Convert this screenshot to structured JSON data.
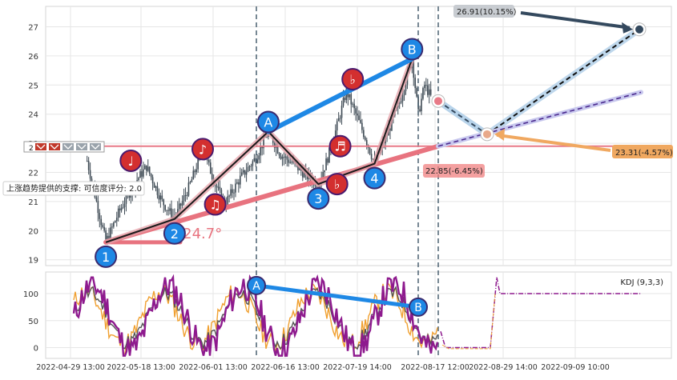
{
  "chart_data": [
    {
      "type": "candlestick",
      "panel": "price",
      "ylim": [
        18.8,
        27.7
      ],
      "yticks": [
        19,
        20,
        21,
        22,
        23,
        24,
        25,
        26,
        27
      ],
      "xticks": [
        "2022-04-29 13:00",
        "2022-05-18 13:00",
        "2022-06-01 13:00",
        "2022-06-16 13:00",
        "2022-07-19 14:00",
        "2022-08-17 12:00",
        "2022-08-29 14:00",
        "2022-09-09 10:00"
      ],
      "grid": true,
      "price_path": [
        {
          "i": 3,
          "v": 22.4
        },
        {
          "i": 6,
          "v": 21.0
        },
        {
          "i": 9,
          "v": 19.6
        },
        {
          "i": 13,
          "v": 20.6
        },
        {
          "i": 18,
          "v": 21.6
        },
        {
          "i": 22,
          "v": 22.2
        },
        {
          "i": 27,
          "v": 21.0
        },
        {
          "i": 31,
          "v": 20.4
        },
        {
          "i": 36,
          "v": 21.6
        },
        {
          "i": 40,
          "v": 22.8
        },
        {
          "i": 44,
          "v": 21.6
        },
        {
          "i": 47,
          "v": 20.9
        },
        {
          "i": 52,
          "v": 21.8
        },
        {
          "i": 57,
          "v": 22.5
        },
        {
          "i": 61,
          "v": 23.4
        },
        {
          "i": 65,
          "v": 22.6
        },
        {
          "i": 69,
          "v": 22.3
        },
        {
          "i": 73,
          "v": 21.9
        },
        {
          "i": 77,
          "v": 21.6
        },
        {
          "i": 80,
          "v": 22.5
        },
        {
          "i": 83,
          "v": 23.6
        },
        {
          "i": 86,
          "v": 24.8
        },
        {
          "i": 89,
          "v": 24.0
        },
        {
          "i": 92,
          "v": 23.2
        },
        {
          "i": 95,
          "v": 22.3
        },
        {
          "i": 99,
          "v": 23.3
        },
        {
          "i": 103,
          "v": 24.4
        },
        {
          "i": 107,
          "v": 25.9
        },
        {
          "i": 109,
          "v": 24.0
        },
        {
          "i": 111,
          "v": 25.0
        },
        {
          "i": 113,
          "v": 24.6
        }
      ],
      "wave_points": [
        {
          "label": "1",
          "i": 9,
          "v": 19.6
        },
        {
          "label": "2",
          "i": 31,
          "v": 20.4
        },
        {
          "label": "A",
          "i": 61,
          "v": 23.4
        },
        {
          "label": "3",
          "i": 77,
          "v": 21.6
        },
        {
          "label": "4",
          "i": 95,
          "v": 22.3
        },
        {
          "label": "B",
          "i": 107,
          "v": 25.9
        }
      ],
      "note_markers": [
        {
          "glyph": "♩",
          "i": 17,
          "v": 22.4
        },
        {
          "glyph": "♪",
          "i": 40,
          "v": 22.8
        },
        {
          "glyph": "♫",
          "i": 44,
          "v": 20.9
        },
        {
          "glyph": "♬",
          "i": 84,
          "v": 22.9
        },
        {
          "glyph": "♭",
          "i": 83,
          "v": 21.6
        },
        {
          "glyph": "♭",
          "i": 88,
          "v": 25.2
        }
      ],
      "support_line": {
        "v_start": 19.6,
        "v_end": 22.9,
        "label": "上涨趋势提供的支撑: 可信度评分: 2.0"
      },
      "angle_label": "∡24.7°",
      "horizontal_level": 22.9,
      "last_price": 24.45,
      "targets": [
        {
          "label": "26.91(10.15%)",
          "value": 26.91,
          "color": "#34495e"
        },
        {
          "label": "23.31(-4.57%)",
          "value": 23.31,
          "color": "#f0a860"
        },
        {
          "label": "22.85(-6.45%)",
          "value": 22.85,
          "color": "#f08080"
        }
      ],
      "flag_count": 5,
      "flag_label": "2"
    },
    {
      "type": "line",
      "panel": "indicator",
      "title": "KDJ (9,3,3)",
      "ylim": [
        -20,
        140
      ],
      "yticks": [
        0,
        50,
        100
      ],
      "divergence": {
        "start": {
          "label": "A",
          "v": 115
        },
        "end": {
          "label": "B",
          "v": 75
        }
      },
      "projection_flat_low": 0,
      "projection_flat_high": 100
    }
  ]
}
